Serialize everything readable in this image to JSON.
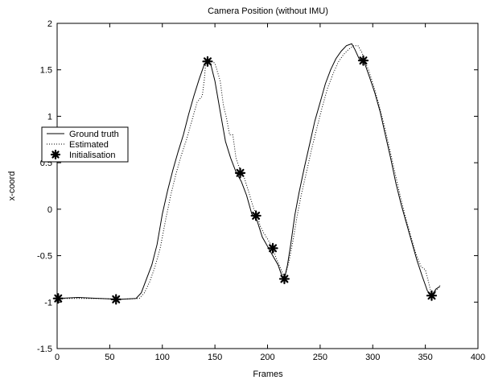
{
  "chart_data": {
    "type": "line",
    "title": "Camera Position (without IMU)",
    "xlabel": "Frames",
    "ylabel": "x-coord",
    "xlim": [
      0,
      400
    ],
    "ylim": [
      -1.5,
      2
    ],
    "xticks": [
      0,
      50,
      100,
      150,
      200,
      250,
      300,
      350,
      400
    ],
    "yticks": [
      -1.5,
      -1,
      -0.5,
      0,
      0.5,
      1,
      1.5,
      2
    ],
    "grid": false,
    "legend_position": "middle-left",
    "series": [
      {
        "name": "Ground truth",
        "style": "solid",
        "color": "#000000",
        "x": [
          0,
          20,
          40,
          60,
          75,
          80,
          85,
          90,
          95,
          100,
          105,
          110,
          115,
          120,
          125,
          130,
          135,
          140,
          143,
          146,
          150,
          155,
          160,
          165,
          170,
          175,
          180,
          185,
          190,
          195,
          200,
          205,
          210,
          214,
          216,
          219,
          222,
          226,
          230,
          235,
          240,
          245,
          250,
          255,
          260,
          265,
          270,
          275,
          280,
          283,
          287,
          292,
          297,
          302,
          307,
          312,
          317,
          322,
          327,
          332,
          337,
          342,
          347,
          352,
          356,
          360,
          364
        ],
        "y": [
          -0.96,
          -0.95,
          -0.96,
          -0.97,
          -0.96,
          -0.9,
          -0.75,
          -0.6,
          -0.38,
          -0.05,
          0.2,
          0.42,
          0.62,
          0.8,
          1.02,
          1.22,
          1.4,
          1.56,
          1.59,
          1.56,
          1.38,
          1.05,
          0.73,
          0.55,
          0.4,
          0.3,
          0.15,
          -0.05,
          -0.12,
          -0.3,
          -0.4,
          -0.5,
          -0.6,
          -0.73,
          -0.75,
          -0.6,
          -0.38,
          -0.06,
          0.18,
          0.45,
          0.7,
          0.95,
          1.15,
          1.35,
          1.5,
          1.62,
          1.7,
          1.76,
          1.78,
          1.72,
          1.62,
          1.58,
          1.42,
          1.25,
          1.05,
          0.8,
          0.55,
          0.28,
          0.05,
          -0.15,
          -0.35,
          -0.55,
          -0.72,
          -0.88,
          -0.93,
          -0.86,
          -0.83
        ]
      },
      {
        "name": "Estimated",
        "style": "dotted",
        "color": "#000000",
        "x": [
          0,
          20,
          40,
          60,
          78,
          83,
          88,
          93,
          98,
          103,
          108,
          113,
          118,
          123,
          128,
          133,
          138,
          140,
          141,
          143,
          146,
          150,
          155,
          158,
          161,
          164,
          167,
          170,
          173,
          176,
          179,
          183,
          187,
          190,
          193,
          196,
          200,
          203,
          205,
          208,
          211,
          214,
          216,
          220,
          224,
          228,
          232,
          237,
          242,
          247,
          252,
          257,
          262,
          267,
          272,
          277,
          282,
          286,
          290,
          292,
          296,
          301,
          306,
          311,
          316,
          321,
          326,
          331,
          336,
          341,
          346,
          350,
          353,
          356,
          360,
          364
        ],
        "y": [
          -0.96,
          -0.96,
          -0.96,
          -0.97,
          -0.96,
          -0.9,
          -0.78,
          -0.62,
          -0.42,
          -0.12,
          0.15,
          0.38,
          0.58,
          0.75,
          0.95,
          1.15,
          1.22,
          1.4,
          1.55,
          1.59,
          1.6,
          1.57,
          1.38,
          1.12,
          0.98,
          0.8,
          0.8,
          0.55,
          0.45,
          0.4,
          0.3,
          0.15,
          0.0,
          -0.05,
          -0.18,
          -0.25,
          -0.32,
          -0.38,
          -0.42,
          -0.52,
          -0.6,
          -0.68,
          -0.75,
          -0.58,
          -0.35,
          -0.08,
          0.15,
          0.4,
          0.65,
          0.88,
          1.1,
          1.3,
          1.45,
          1.58,
          1.66,
          1.72,
          1.76,
          1.76,
          1.68,
          1.6,
          1.5,
          1.32,
          1.12,
          0.9,
          0.65,
          0.4,
          0.15,
          -0.08,
          -0.28,
          -0.48,
          -0.62,
          -0.65,
          -0.78,
          -0.93,
          -0.88,
          -0.82
        ]
      },
      {
        "name": "Initialisation",
        "style": "marker",
        "color": "#000000",
        "x": [
          1,
          56,
          143,
          174,
          189,
          205,
          216,
          291,
          356
        ],
        "y": [
          -0.96,
          -0.97,
          1.59,
          0.39,
          -0.07,
          -0.42,
          -0.75,
          1.6,
          -0.93
        ]
      }
    ]
  }
}
